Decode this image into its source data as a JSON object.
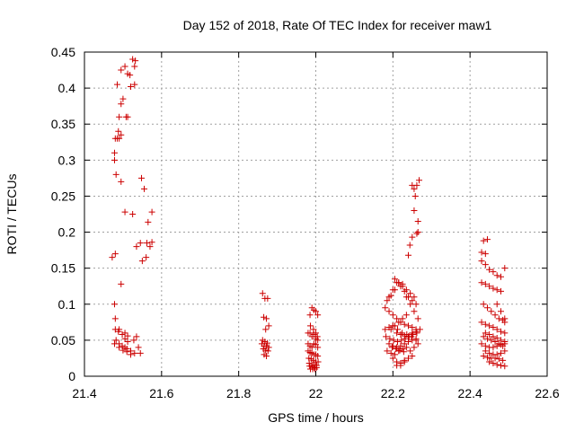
{
  "chart_data": {
    "type": "scatter",
    "title": "Day 152 of 2018, Rate Of TEC Index for receiver maw1",
    "xlabel": "GPS time / hours",
    "ylabel": "ROTI / TECUs",
    "xlim": [
      21.4,
      22.6
    ],
    "ylim": [
      0,
      0.45
    ],
    "xticks": [
      21.4,
      21.6,
      21.8,
      22.0,
      22.2,
      22.4,
      22.6
    ],
    "xtick_labels": [
      "21.4",
      "21.6",
      "21.8",
      "22",
      "22.2",
      "22.4",
      "22.6"
    ],
    "yticks": [
      0,
      0.05,
      0.1,
      0.15,
      0.2,
      0.25,
      0.3,
      0.35,
      0.4,
      0.45
    ],
    "ytick_labels": [
      "0",
      "0.05",
      "0.1",
      "0.15",
      "0.2",
      "0.25",
      "0.3",
      "0.35",
      "0.4",
      "0.45"
    ],
    "grid": true,
    "marker_color": "#cc0000",
    "series": [
      {
        "name": "ROTI",
        "x": [
          21.525,
          21.532,
          21.53,
          21.518,
          21.512,
          21.52,
          21.5,
          21.495,
          21.508,
          21.512,
          21.49,
          21.49,
          21.48,
          21.478,
          21.485,
          21.495,
          21.488,
          21.478,
          21.482,
          21.495,
          21.505,
          21.525,
          21.535,
          21.545,
          21.55,
          21.56,
          21.562,
          21.57,
          21.575,
          21.575,
          21.565,
          21.555,
          21.548,
          21.495,
          21.48,
          21.472,
          21.478,
          21.49,
          21.505,
          21.512,
          21.528,
          21.54,
          21.535,
          21.48,
          21.48,
          21.488,
          21.498,
          21.505,
          21.512,
          21.482,
          21.49,
          21.498,
          21.505,
          21.51,
          21.52,
          21.53,
          21.478,
          21.49,
          21.5,
          21.51,
          21.52,
          21.545,
          21.53,
          21.485,
          21.495,
          21.505,
          21.862,
          21.868,
          21.875,
          21.865,
          21.872,
          21.87,
          21.878,
          21.862,
          21.868,
          21.874,
          21.86,
          21.866,
          21.872,
          21.878,
          21.864,
          21.87,
          21.876,
          21.866,
          21.872,
          21.98,
          21.985,
          21.99,
          21.995,
          22.0,
          22.005,
          21.985,
          21.99,
          21.995,
          22.0,
          22.005,
          21.98,
          21.985,
          21.99,
          21.995,
          22.0,
          22.005,
          21.98,
          21.985,
          21.99,
          21.995,
          22.0,
          22.005,
          21.982,
          21.988,
          21.994,
          22.0,
          22.006,
          21.983,
          21.99,
          21.996,
          22.002,
          21.984,
          21.99,
          21.996,
          22.002,
          21.986,
          21.992,
          21.998,
          21.986,
          21.994,
          22.0,
          22.004,
          22.255,
          22.268,
          22.262,
          22.25,
          22.258,
          22.265,
          22.262,
          22.25,
          22.244,
          22.24,
          22.255,
          22.265,
          22.18,
          22.19,
          22.2,
          22.21,
          22.22,
          22.23,
          22.24,
          22.25,
          22.26,
          22.185,
          22.195,
          22.205,
          22.215,
          22.225,
          22.235,
          22.245,
          22.255,
          22.19,
          22.2,
          22.21,
          22.22,
          22.23,
          22.24,
          22.25,
          22.26,
          22.18,
          22.19,
          22.2,
          22.21,
          22.22,
          22.23,
          22.24,
          22.25,
          22.26,
          22.27,
          22.182,
          22.192,
          22.202,
          22.212,
          22.222,
          22.232,
          22.242,
          22.252,
          22.262,
          22.19,
          22.2,
          22.21,
          22.22,
          22.23,
          22.24,
          22.25,
          22.26,
          22.185,
          22.195,
          22.205,
          22.215,
          22.225,
          22.235,
          22.245,
          22.255,
          22.265,
          22.2,
          22.21,
          22.22,
          22.23,
          22.24,
          22.25,
          22.195,
          22.205,
          22.215,
          22.225,
          22.235,
          22.198,
          22.208,
          22.218,
          22.228,
          22.21,
          22.22,
          22.23,
          22.205,
          22.215,
          22.225,
          22.235,
          22.245,
          22.255,
          22.265,
          22.2,
          22.212,
          22.224,
          22.236,
          22.248,
          22.26,
          22.43,
          22.44,
          22.435,
          22.445,
          22.43,
          22.44,
          22.45,
          22.46,
          22.47,
          22.48,
          22.49,
          22.43,
          22.44,
          22.45,
          22.46,
          22.47,
          22.48,
          22.435,
          22.445,
          22.455,
          22.465,
          22.475,
          22.485,
          22.49,
          22.43,
          22.44,
          22.45,
          22.46,
          22.47,
          22.48,
          22.49,
          22.435,
          22.445,
          22.455,
          22.465,
          22.475,
          22.485,
          22.43,
          22.44,
          22.45,
          22.46,
          22.47,
          22.48,
          22.49,
          22.44,
          22.45,
          22.46,
          22.47,
          22.48,
          22.49,
          22.435,
          22.445,
          22.455,
          22.465,
          22.475,
          22.485,
          22.45,
          22.46,
          22.47,
          22.48,
          22.49,
          22.44,
          22.45,
          22.46,
          22.47,
          22.48,
          22.49,
          22.47,
          22.48,
          22.49
        ],
        "y": [
          0.44,
          0.438,
          0.43,
          0.418,
          0.42,
          0.402,
          0.385,
          0.378,
          0.36,
          0.36,
          0.36,
          0.33,
          0.33,
          0.31,
          0.33,
          0.335,
          0.34,
          0.3,
          0.28,
          0.27,
          0.228,
          0.225,
          0.18,
          0.185,
          0.16,
          0.165,
          0.185,
          0.18,
          0.186,
          0.228,
          0.214,
          0.26,
          0.275,
          0.128,
          0.17,
          0.165,
          0.1,
          0.065,
          0.06,
          0.056,
          0.05,
          0.04,
          0.055,
          0.08,
          0.065,
          0.062,
          0.058,
          0.052,
          0.048,
          0.05,
          0.045,
          0.042,
          0.04,
          0.038,
          0.035,
          0.032,
          0.045,
          0.04,
          0.036,
          0.034,
          0.03,
          0.032,
          0.405,
          0.405,
          0.425,
          0.43,
          0.115,
          0.108,
          0.108,
          0.082,
          0.08,
          0.065,
          0.07,
          0.05,
          0.048,
          0.046,
          0.045,
          0.042,
          0.042,
          0.04,
          0.038,
          0.036,
          0.035,
          0.03,
          0.028,
          0.06,
          0.085,
          0.095,
          0.092,
          0.09,
          0.085,
          0.06,
          0.055,
          0.058,
          0.052,
          0.05,
          0.045,
          0.042,
          0.04,
          0.045,
          0.044,
          0.04,
          0.035,
          0.033,
          0.032,
          0.03,
          0.03,
          0.028,
          0.025,
          0.024,
          0.022,
          0.02,
          0.02,
          0.018,
          0.016,
          0.015,
          0.015,
          0.014,
          0.013,
          0.012,
          0.012,
          0.01,
          0.01,
          0.01,
          0.07,
          0.065,
          0.06,
          0.055,
          0.26,
          0.272,
          0.265,
          0.265,
          0.25,
          0.2,
          0.198,
          0.193,
          0.182,
          0.168,
          0.23,
          0.215,
          0.095,
          0.11,
          0.12,
          0.13,
          0.125,
          0.118,
          0.11,
          0.105,
          0.1,
          0.105,
          0.112,
          0.12,
          0.13,
          0.128,
          0.12,
          0.115,
          0.11,
          0.09,
          0.085,
          0.08,
          0.075,
          0.072,
          0.07,
          0.068,
          0.065,
          0.065,
          0.068,
          0.07,
          0.06,
          0.058,
          0.056,
          0.055,
          0.06,
          0.062,
          0.065,
          0.055,
          0.052,
          0.05,
          0.048,
          0.05,
          0.052,
          0.055,
          0.058,
          0.06,
          0.045,
          0.042,
          0.04,
          0.042,
          0.045,
          0.048,
          0.05,
          0.052,
          0.035,
          0.032,
          0.03,
          0.035,
          0.038,
          0.04,
          0.035,
          0.04,
          0.045,
          0.025,
          0.02,
          0.018,
          0.022,
          0.025,
          0.028,
          0.065,
          0.07,
          0.075,
          0.08,
          0.085,
          0.04,
          0.038,
          0.036,
          0.034,
          0.015,
          0.015,
          0.02,
          0.135,
          0.13,
          0.125,
          0.11,
          0.1,
          0.09,
          0.08,
          0.07,
          0.065,
          0.06,
          0.058,
          0.055,
          0.05,
          0.172,
          0.17,
          0.188,
          0.19,
          0.16,
          0.155,
          0.148,
          0.145,
          0.14,
          0.138,
          0.15,
          0.13,
          0.128,
          0.125,
          0.122,
          0.12,
          0.118,
          0.1,
          0.095,
          0.09,
          0.085,
          0.08,
          0.078,
          0.075,
          0.075,
          0.072,
          0.07,
          0.068,
          0.065,
          0.062,
          0.06,
          0.055,
          0.052,
          0.05,
          0.048,
          0.045,
          0.042,
          0.045,
          0.042,
          0.04,
          0.04,
          0.042,
          0.044,
          0.045,
          0.035,
          0.032,
          0.03,
          0.03,
          0.032,
          0.035,
          0.028,
          0.026,
          0.025,
          0.025,
          0.024,
          0.022,
          0.02,
          0.018,
          0.016,
          0.015,
          0.014,
          0.06,
          0.058,
          0.055,
          0.053,
          0.05,
          0.048,
          0.1,
          0.09,
          0.08
        ]
      }
    ]
  }
}
